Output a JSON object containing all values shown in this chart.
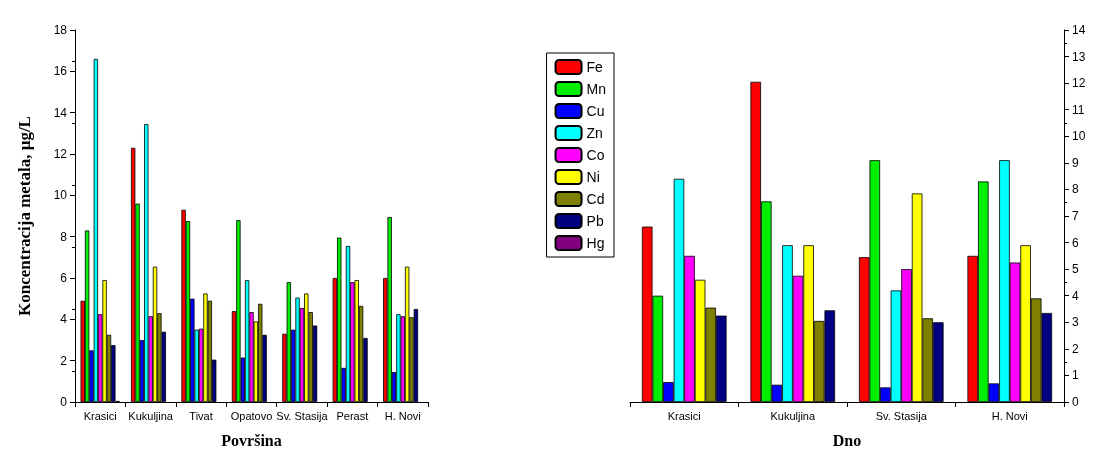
{
  "chart_data": [
    {
      "type": "bar",
      "xlabel": "Površina",
      "ylabel": "Koncentracija metala, μg/L",
      "categories": [
        "Krasici",
        "Kukuljina",
        "Tivat",
        "Opatovo",
        "Sv. Stasija",
        "Perast",
        "H. Novi"
      ],
      "ylim": [
        0,
        18
      ],
      "yticks": [
        0,
        2,
        4,
        6,
        8,
        10,
        12,
        14,
        16,
        18
      ],
      "legend": "right",
      "series": [
        {
          "name": "Fe",
          "color": "#ff0000",
          "values": [
            4.9,
            12.3,
            9.3,
            4.4,
            3.3,
            6.0,
            6.0
          ]
        },
        {
          "name": "Mn",
          "color": "#00ee00",
          "values": [
            8.3,
            9.6,
            8.75,
            8.8,
            5.8,
            7.95,
            8.95
          ]
        },
        {
          "name": "Cu",
          "color": "#0000ff",
          "values": [
            2.5,
            3.0,
            5.0,
            2.15,
            3.5,
            1.65,
            1.45
          ]
        },
        {
          "name": "Zn",
          "color": "#00ffff",
          "values": [
            16.6,
            13.45,
            3.5,
            5.9,
            5.05,
            7.55,
            4.25
          ]
        },
        {
          "name": "Co",
          "color": "#ff00ff",
          "values": [
            4.25,
            4.15,
            3.55,
            4.35,
            4.55,
            5.8,
            4.15
          ]
        },
        {
          "name": "Ni",
          "color": "#ffff00",
          "values": [
            5.9,
            6.55,
            5.25,
            3.9,
            5.25,
            5.9,
            6.55
          ]
        },
        {
          "name": "Cd",
          "color": "#808000",
          "values": [
            3.25,
            4.3,
            4.9,
            4.75,
            4.35,
            4.65,
            4.1
          ]
        },
        {
          "name": "Pb",
          "color": "#000080",
          "values": [
            2.75,
            3.4,
            2.05,
            3.25,
            3.7,
            3.1,
            4.5
          ]
        },
        {
          "name": "Hg",
          "color": "#800080",
          "values": [
            0.05,
            null,
            null,
            null,
            null,
            null,
            null
          ]
        }
      ]
    },
    {
      "type": "bar",
      "xlabel": "Dno",
      "categories": [
        "Krasici",
        "Kukuljina",
        "Sv. Stasija",
        "H. Novi"
      ],
      "ylim": [
        0,
        14
      ],
      "yticks": [
        0,
        1,
        2,
        3,
        4,
        5,
        6,
        7,
        8,
        9,
        10,
        11,
        12,
        13,
        14
      ],
      "series": [
        {
          "color": "#ff0000",
          "values": [
            6.6,
            12.05,
            5.45,
            5.5
          ]
        },
        {
          "color": "#00ee00",
          "values": [
            4.0,
            7.55,
            9.1,
            8.3
          ]
        },
        {
          "color": "#0000ff",
          "values": [
            0.75,
            0.65,
            0.55,
            0.7
          ]
        },
        {
          "color": "#00ffff",
          "values": [
            8.4,
            5.9,
            4.2,
            9.1
          ]
        },
        {
          "color": "#ff00ff",
          "values": [
            5.5,
            4.75,
            5.0,
            5.25
          ]
        },
        {
          "color": "#ffff00",
          "values": [
            4.6,
            5.9,
            7.85,
            5.9
          ]
        },
        {
          "color": "#808000",
          "values": [
            3.55,
            3.05,
            3.15,
            3.9
          ]
        },
        {
          "color": "#000080",
          "values": [
            3.25,
            3.45,
            3.0,
            3.35
          ]
        }
      ]
    }
  ]
}
